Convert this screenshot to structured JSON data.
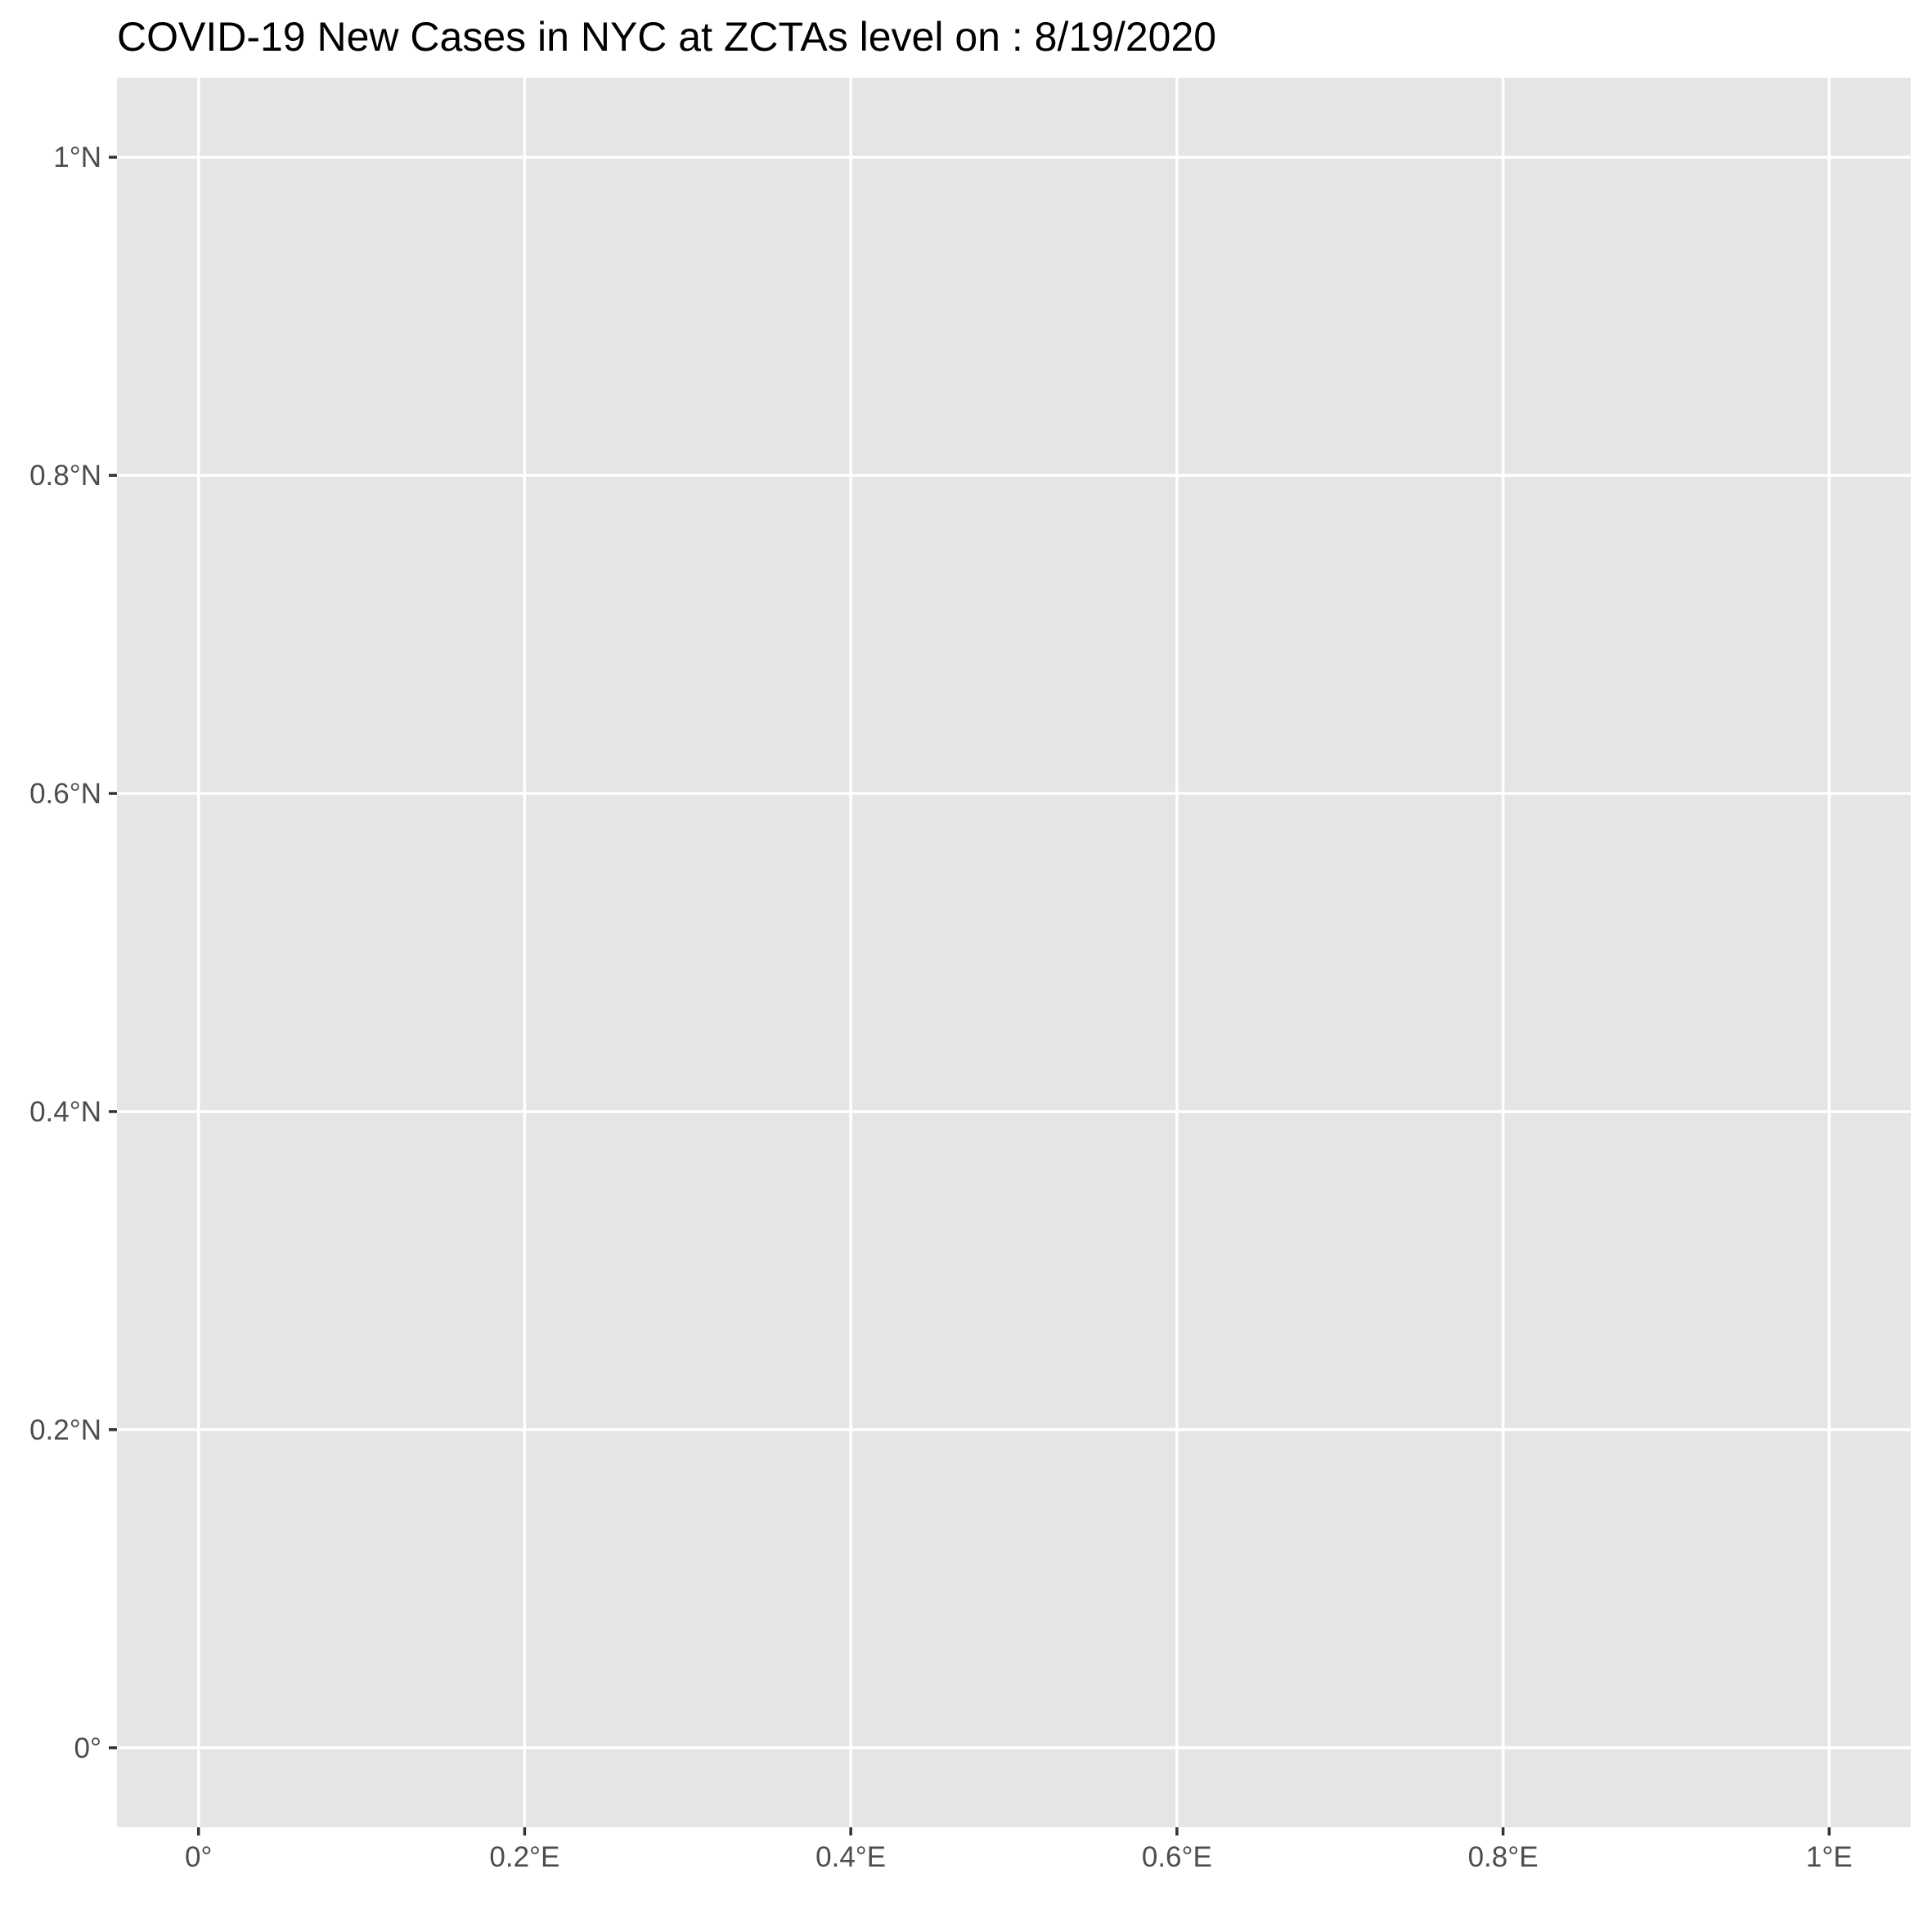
{
  "chart_data": {
    "type": "map",
    "title": "COVID-19 New Cases in NYC at ZCTAs level on : 8/19/2020",
    "xlabel": "",
    "ylabel": "",
    "xlim": [
      -0.05,
      1.05
    ],
    "ylim": [
      -0.05,
      1.05
    ],
    "x_ticks": [
      0,
      0.2,
      0.4,
      0.6,
      0.8,
      1
    ],
    "x_tick_labels": [
      "0°",
      "0.2°E",
      "0.4°E",
      "0.6°E",
      "0.8°E",
      "1°E"
    ],
    "y_ticks": [
      0,
      0.2,
      0.4,
      0.6,
      0.8,
      1
    ],
    "y_tick_labels": [
      "0°",
      "0.2°N",
      "0.4°N",
      "0.6°N",
      "0.8°N",
      "1°N"
    ],
    "grid": true,
    "panel_background": "#e5e5e5",
    "grid_color": "#ffffff",
    "tick_color": "#333333",
    "label_color": "#4d4d4d",
    "features": []
  }
}
